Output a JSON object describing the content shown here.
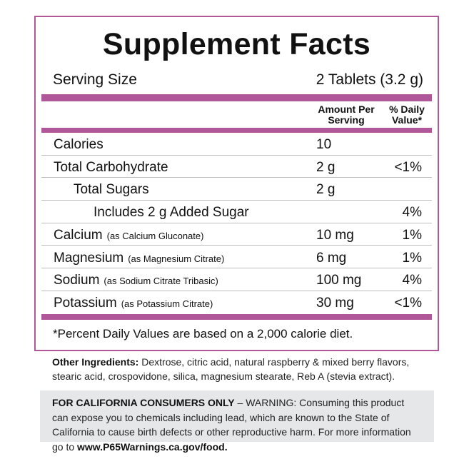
{
  "title": "Supplement Facts",
  "serving_size": {
    "label": "Serving Size",
    "value": "2 Tablets (3.2 g)"
  },
  "header": {
    "amount": "Amount Per Serving",
    "dv": "% Daily Value*"
  },
  "rows": [
    {
      "name": "Calories",
      "sub": "",
      "amount": "10",
      "dv": ""
    },
    {
      "name": "Total Carbohydrate",
      "sub": "",
      "amount": "2 g",
      "dv": "<1%"
    },
    {
      "name": "Total Sugars",
      "sub": "",
      "amount": "2 g",
      "dv": ""
    },
    {
      "name": "Includes 2 g Added Sugar",
      "sub": "",
      "amount": "",
      "dv": "4%"
    },
    {
      "name": "Calcium",
      "sub": "(as Calcium Gluconate)",
      "amount": "10 mg",
      "dv": "1%"
    },
    {
      "name": "Magnesium",
      "sub": "(as Magnesium Citrate)",
      "amount": "6 mg",
      "dv": "1%"
    },
    {
      "name": "Sodium",
      "sub": "(as Sodium Citrate Tribasic)",
      "amount": "100 mg",
      "dv": "4%"
    },
    {
      "name": "Potassium",
      "sub": "(as Potassium Citrate)",
      "amount": "30 mg",
      "dv": "<1%"
    }
  ],
  "footnote": "*Percent Daily Values are based on a 2,000 calorie diet.",
  "ingredients": {
    "label": "Other Ingredients:",
    "text": " Dextrose, citric acid, natural raspberry & mixed berry flavors, stearic acid, crospovidone, silica, magnesium stearate, Reb A (stevia extract)."
  },
  "warning": {
    "label": "FOR CALIFORNIA CONSUMERS ONLY",
    "text": " – WARNING: Consuming this product can expose you to chemicals including lead, which are known to the State of California to cause birth defects or other reproductive harm. For more information go to ",
    "link": "www.P65Warnings.ca.gov/food."
  },
  "colors": {
    "accent": "#b0579a",
    "warning_bg": "#e6e7e8"
  }
}
